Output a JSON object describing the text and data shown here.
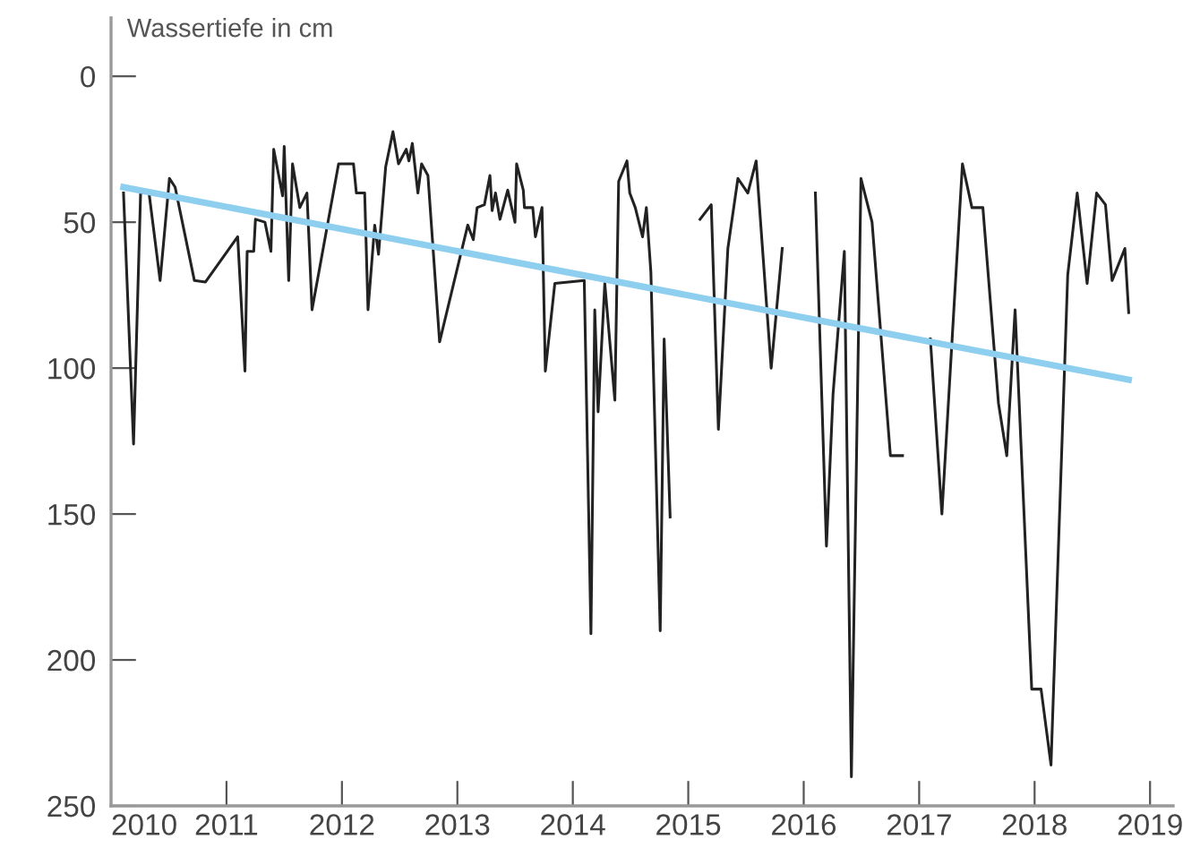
{
  "chart_data": {
    "type": "line",
    "ylabel": "Wassertiefe in cm",
    "ylim": [
      250,
      -20
    ],
    "yticks": [
      0,
      50,
      100,
      150,
      200,
      250
    ],
    "xlim": [
      2010,
      2019.2
    ],
    "xticks": [
      2010,
      2011,
      2012,
      2013,
      2014,
      2015,
      2016,
      2017,
      2018,
      2019
    ],
    "grid": false,
    "legend": false,
    "marker": "none",
    "line_style": "solid",
    "series": [
      {
        "color": "#222222",
        "x": [
          2010.108,
          2010.195,
          2010.256,
          2010.329,
          2010.425,
          2010.506,
          2010.555,
          2010.722,
          2010.818,
          2011.097,
          2011.16,
          2011.179,
          2011.236,
          2011.251,
          2011.333,
          2011.385,
          2011.409,
          2011.486,
          2011.5,
          2011.539,
          2011.572,
          2011.635,
          2011.697,
          2011.741,
          2011.971,
          2012.1,
          2012.125,
          2012.197,
          2012.226,
          2012.284,
          2012.317,
          2012.379,
          2012.442,
          2012.49,
          2012.557,
          2012.58,
          2012.61,
          2012.658,
          2012.69,
          2012.745,
          2012.846,
          2013.09,
          2013.138,
          2013.171,
          2013.234,
          2013.282,
          2013.301,
          2013.33,
          2013.369,
          2013.436,
          2013.499,
          2013.513,
          2013.571,
          2013.581,
          2013.653,
          2013.676,
          2013.733,
          2013.762,
          2013.844,
          2014.099,
          2014.157,
          2014.19,
          2014.219,
          2014.277,
          2014.364,
          2014.397,
          2014.469,
          2014.493,
          2014.541,
          2014.604,
          2014.637,
          2014.676,
          2014.757,
          2014.791,
          2014.843,
          2014.97,
          2015.102,
          2015.199,
          2015.261,
          2015.343,
          2015.43,
          2015.516,
          2015.588,
          2015.718,
          2015.814,
          2015.95,
          2016.101,
          2016.197,
          2016.254,
          2016.352,
          2016.413,
          2016.496,
          2016.592,
          2016.751,
          2016.856,
          2016.98,
          2017.097,
          2017.197,
          2017.302,
          2017.375,
          2017.457,
          2017.552,
          2017.687,
          2017.759,
          2017.831,
          2017.975,
          2018.056,
          2018.142,
          2018.287,
          2018.369,
          2018.455,
          2018.537,
          2018.614,
          2018.671,
          2018.782,
          2018.815
        ],
        "values": [
          40,
          126,
          40,
          40,
          70,
          35,
          38,
          70,
          70.5,
          55,
          101,
          60,
          60,
          49,
          50,
          60,
          25,
          41,
          24,
          70,
          30,
          45,
          40,
          80,
          30,
          30,
          40,
          40,
          80,
          51,
          61,
          31,
          19,
          30,
          25,
          29,
          23,
          40,
          30,
          34,
          91,
          51,
          56,
          45,
          44,
          34,
          46,
          40,
          49,
          39,
          50,
          30,
          39,
          45,
          45,
          55,
          45,
          101,
          71,
          70,
          191,
          80,
          115,
          71,
          111,
          36,
          29,
          40,
          45,
          55,
          45,
          67,
          190,
          90,
          151,
          null,
          49,
          44,
          121,
          59,
          35,
          40,
          29,
          100,
          59,
          null,
          40,
          161,
          109,
          60,
          240,
          35,
          50,
          130,
          130,
          null,
          90,
          150,
          79,
          30,
          45,
          45,
          112,
          130,
          80,
          210,
          210,
          236,
          68,
          40,
          71,
          40,
          44,
          70,
          59,
          81
        ]
      },
      {
        "color": "#8ecfef",
        "x": [
          2010.108,
          2018.815
        ],
        "values": [
          38,
          104
        ]
      }
    ]
  }
}
